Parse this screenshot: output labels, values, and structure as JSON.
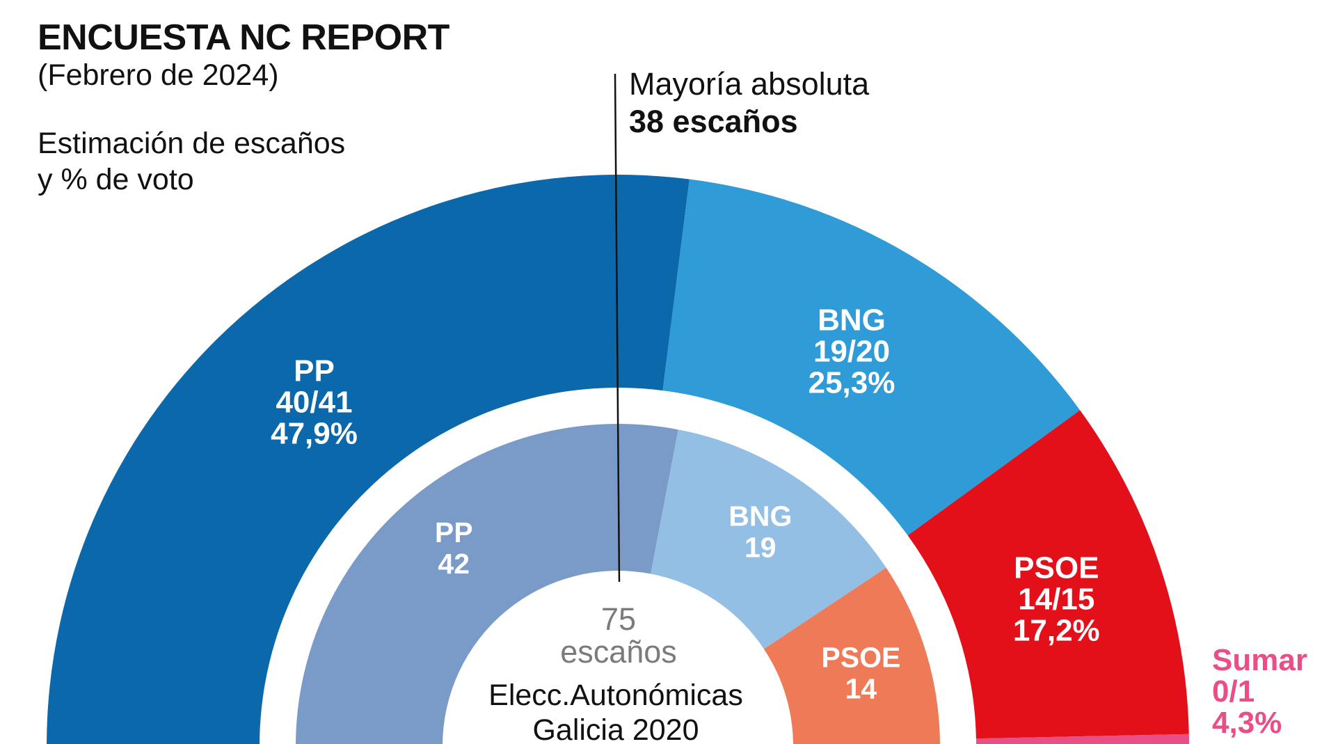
{
  "header": {
    "title": "ENCUESTA NC REPORT",
    "subtitle": "(Febrero de 2024)",
    "desc_line1": "Estimación de escaños",
    "desc_line2": "y % de voto"
  },
  "majority": {
    "label": "Mayoría absoluta",
    "value": "38 escaños"
  },
  "center": {
    "seats_number": "75",
    "seats_word": "escaños",
    "election_line1": "Elecc.Autonómicas",
    "election_line2": "Galicia 2020"
  },
  "chart_data": {
    "type": "semicircle-parliament",
    "total_seats": 75,
    "majority_seats": 38,
    "series": [
      {
        "name": "Encuesta NC Report (Febrero de 2024)",
        "ring": "outer",
        "parties": [
          {
            "party": "PP",
            "seats_label": "40/41",
            "seats": 40.5,
            "vote_pct_label": "47,9%",
            "vote_pct": 47.9,
            "color": "#0B69AB"
          },
          {
            "party": "BNG",
            "seats_label": "19/20",
            "seats": 19.5,
            "vote_pct_label": "25,3%",
            "vote_pct": 25.3,
            "color": "#2F9CD8"
          },
          {
            "party": "PSOE",
            "seats_label": "14/15",
            "seats": 14.5,
            "vote_pct_label": "17,2%",
            "vote_pct": 17.2,
            "color": "#E31019"
          },
          {
            "party": "Sumar",
            "seats_label": "0/1",
            "seats": 0.5,
            "vote_pct_label": "4,3%",
            "vote_pct": 4.3,
            "color": "#E94E86"
          }
        ]
      },
      {
        "name": "Elecc.Autonómicas Galicia 2020",
        "ring": "inner",
        "parties": [
          {
            "party": "PP",
            "seats_label": "42",
            "seats": 42,
            "color": "#7A9AC8"
          },
          {
            "party": "BNG",
            "seats_label": "19",
            "seats": 19,
            "color": "#94BFE5"
          },
          {
            "party": "PSOE",
            "seats_label": "14",
            "seats": 14,
            "color": "#EE7A57"
          }
        ]
      }
    ]
  }
}
